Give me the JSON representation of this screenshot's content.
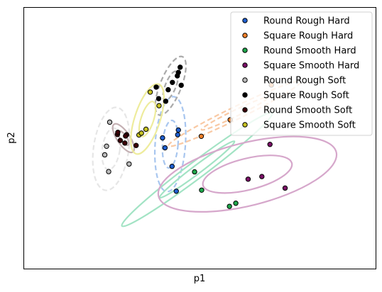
{
  "chart_data": {
    "type": "scatter",
    "title": "",
    "xlabel": "p1",
    "ylabel": "p2",
    "xlim": [
      0,
      100
    ],
    "ylim": [
      0,
      100
    ],
    "grid": false,
    "ticks_shown": false,
    "legend_placement": "top-right",
    "series": [
      {
        "name": "Round Rough Hard",
        "color": "#1f5fd0",
        "points": [
          [
            39.5,
            50.0
          ],
          [
            40.2,
            46.2
          ],
          [
            42.2,
            39.1
          ],
          [
            44.0,
            53.0
          ],
          [
            43.4,
            29.6
          ],
          [
            43.8,
            51.2
          ]
        ],
        "ellipses": [
          {
            "cx": 41.7,
            "cy": 47.6,
            "rx": 2.2,
            "ry": 9.1,
            "rotate": 4,
            "color": "#a8c6ef",
            "dash": true
          },
          {
            "cx": 41.7,
            "cy": 47.6,
            "rx": 4.3,
            "ry": 18.2,
            "rotate": 4,
            "color": "#a8c6ef",
            "dash": true
          }
        ]
      },
      {
        "name": "Square Rough Hard",
        "color": "#f07f28",
        "points": [
          [
            50.5,
            50.6
          ],
          [
            58.7,
            56.9
          ],
          [
            70.4,
            70.2
          ]
        ],
        "ellipses": [
          {
            "cx": 59.9,
            "cy": 59.2,
            "rx": 10.4,
            "ry": 1.2,
            "rotate": -26,
            "color": "#f9c9a4",
            "dash": true
          },
          {
            "cx": 59.9,
            "cy": 59.2,
            "rx": 20.8,
            "ry": 2.4,
            "rotate": -26,
            "color": "#f9c9a4",
            "dash": true
          }
        ]
      },
      {
        "name": "Round Smooth Hard",
        "color": "#1ea64a",
        "points": [
          [
            48.6,
            37.0
          ],
          [
            50.6,
            30.0
          ],
          [
            58.5,
            23.8
          ],
          [
            60.3,
            25.0
          ]
        ],
        "ellipses": [
          {
            "cx": 49.3,
            "cy": 37.9,
            "rx": 13.3,
            "ry": 1.6,
            "rotate": -37,
            "color": "#a2e3c4",
            "dash": false
          },
          {
            "cx": 49.3,
            "cy": 37.9,
            "rx": 26.7,
            "ry": 3.2,
            "rotate": -37,
            "color": "#a2e3c4",
            "dash": false
          }
        ]
      },
      {
        "name": "Square Smooth Hard",
        "color": "#7a1067",
        "points": [
          [
            70.0,
            47.5
          ],
          [
            63.8,
            34.2
          ],
          [
            67.7,
            35.2
          ],
          [
            74.3,
            30.8
          ]
        ],
        "ellipses": [
          {
            "cx": 63.6,
            "cy": 36.1,
            "rx": 13.0,
            "ry": 6.0,
            "rotate": -14,
            "color": "#d6a7cb",
            "dash": false
          },
          {
            "cx": 63.6,
            "cy": 36.1,
            "rx": 26.0,
            "ry": 12.0,
            "rotate": -14,
            "color": "#d6a7cb",
            "dash": false
          }
        ]
      },
      {
        "name": "Round Rough Soft",
        "color": "#bbbbbb",
        "points": [
          [
            24.5,
            56.0
          ],
          [
            23.6,
            46.8
          ],
          [
            23.1,
            43.5
          ],
          [
            30.0,
            40.0
          ],
          [
            24.2,
            37.1
          ]
        ],
        "ellipses": [
          {
            "cx": 24.9,
            "cy": 45.8,
            "rx": 2.5,
            "ry": 8.0,
            "rotate": 8,
            "color": "#e6e6e6",
            "dash": true
          },
          {
            "cx": 24.9,
            "cy": 45.8,
            "rx": 5.0,
            "ry": 16.0,
            "rotate": 8,
            "color": "#e6e6e6",
            "dash": true
          }
        ]
      },
      {
        "name": "Square Rough Soft",
        "color": "#000000",
        "points": [
          [
            38.4,
            65.0
          ],
          [
            41.1,
            68.4
          ],
          [
            42.3,
            71.2
          ],
          [
            43.7,
            73.7
          ],
          [
            44.0,
            75.0
          ],
          [
            44.8,
            70.1
          ],
          [
            44.5,
            77.0
          ],
          [
            37.7,
            69.4
          ],
          [
            40.4,
            64.0
          ]
        ],
        "ellipses": [
          {
            "cx": 41.8,
            "cy": 69.9,
            "rx": 1.5,
            "ry": 6.0,
            "rotate": 22,
            "color": "#aaaaaa",
            "dash": true
          },
          {
            "cx": 41.8,
            "cy": 69.9,
            "rx": 3.0,
            "ry": 12.0,
            "rotate": 22,
            "color": "#aaaaaa",
            "dash": true
          }
        ]
      },
      {
        "name": "Round Smooth Soft",
        "color": "#3d0008",
        "points": [
          [
            26.7,
            51.3
          ],
          [
            27.5,
            49.0
          ],
          [
            28.8,
            48.0
          ],
          [
            29.3,
            51.2
          ],
          [
            29.0,
            50.7
          ],
          [
            32.0,
            47.1
          ],
          [
            26.8,
            52.1
          ]
        ],
        "ellipses": [
          {
            "cx": 28.4,
            "cy": 49.9,
            "rx": 0.9,
            "ry": 3.2,
            "rotate": -34,
            "color": "#c4b0b3",
            "dash": false
          },
          {
            "cx": 28.4,
            "cy": 49.9,
            "rx": 1.8,
            "ry": 6.4,
            "rotate": -34,
            "color": "#c4b0b3",
            "dash": false
          }
        ]
      },
      {
        "name": "Square Smooth Soft",
        "color": "#c7c322",
        "points": [
          [
            36.0,
            67.5
          ],
          [
            34.8,
            53.3
          ],
          [
            32.8,
            51.1
          ],
          [
            33.5,
            51.8
          ],
          [
            38.5,
            62.3
          ]
        ],
        "ellipses": [
          {
            "cx": 35.2,
            "cy": 57.2,
            "rx": 1.8,
            "ry": 7.0,
            "rotate": 18,
            "color": "#eeec9c",
            "dash": false
          },
          {
            "cx": 35.2,
            "cy": 57.2,
            "rx": 3.6,
            "ry": 14.0,
            "rotate": 18,
            "color": "#eeec9c",
            "dash": false
          }
        ]
      }
    ]
  }
}
